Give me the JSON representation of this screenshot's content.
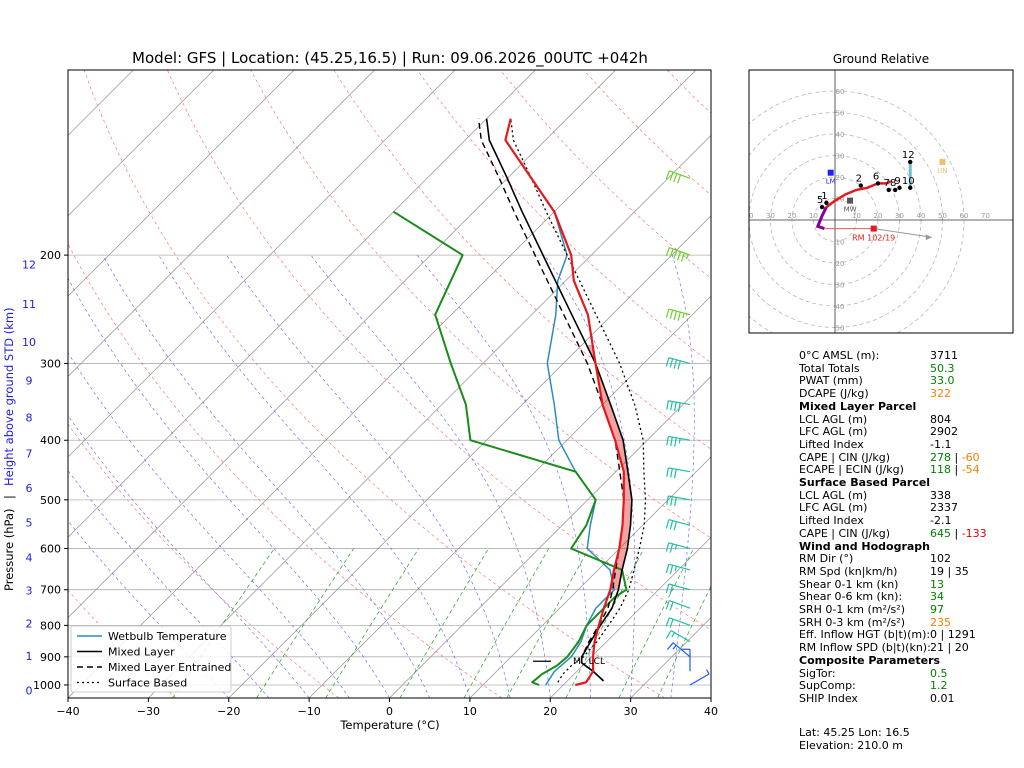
{
  "chart_data": [
    {
      "type": "skew-t",
      "title": "Model: GFS | Location: (45.25,16.5) | Run: 09.06.2026_00UTC +042h",
      "xlabel": "Temperature (°C)",
      "ylabel": "Pressure (hPa)",
      "ylabel2": "Height above ground STD (km)",
      "xlim": [
        -40,
        40
      ],
      "ylim": [
        1050,
        100
      ],
      "x_ticks": [
        "−40",
        "−30",
        "−20",
        "−10",
        "0",
        "10",
        "20",
        "30",
        "40"
      ],
      "p_ticks": [
        "200",
        "300",
        "400",
        "500",
        "600",
        "700",
        "800",
        "900",
        "1000"
      ],
      "p_tick_values": [
        200,
        300,
        400,
        500,
        600,
        700,
        800,
        900,
        1000
      ],
      "km_ticks": [
        "0",
        "1",
        "2",
        "3",
        "4",
        "5",
        "6",
        "7",
        "8",
        "9",
        "10",
        "11",
        "12"
      ],
      "km_tick_pressures": [
        1020,
        898,
        795,
        702,
        620,
        544,
        478,
        420,
        367,
        320,
        277,
        240,
        207
      ],
      "legend": [
        "Wetbulb Temperature",
        "Mixed Layer",
        "Mixed Layer Entrained",
        "Surface Based"
      ],
      "legend_position": "lower-left",
      "annotation": "ML LCL",
      "annotation_pressure": 915,
      "series": [
        {
          "name": "temperature",
          "color": "#e31a1c",
          "p": [
            1000,
            990,
            950,
            900,
            850,
            800,
            750,
            700,
            650,
            600,
            550,
            500,
            450,
            400,
            350,
            300,
            250,
            220,
            200,
            170,
            150,
            130,
            120
          ],
          "t": [
            21.5,
            22.5,
            22,
            20.2,
            18.5,
            17,
            15.5,
            14,
            12,
            10,
            7.5,
            4.5,
            1,
            -4,
            -10,
            -16,
            -23,
            -29,
            -32.5,
            -40,
            -47,
            -55,
            -57
          ]
        },
        {
          "name": "dewpoint",
          "color": "#1a8c1a",
          "p": [
            1000,
            990,
            960,
            930,
            900,
            850,
            800,
            760,
            720,
            700,
            650,
            600,
            550,
            500,
            450,
            400,
            350,
            300,
            250,
            200,
            170
          ],
          "t": [
            17,
            15.8,
            16,
            16.8,
            17,
            16.5,
            15.5,
            15.5,
            15.5,
            16,
            13,
            4,
            3,
            1,
            -5,
            -22,
            -27,
            -34,
            -42,
            -46,
            -60
          ]
        },
        {
          "name": "Wetbulb Temperature",
          "color": "#2b8cbe",
          "p": [
            1000,
            950,
            900,
            850,
            800,
            750,
            700,
            650,
            600,
            550,
            500,
            450,
            400,
            350,
            300,
            250,
            220,
            200,
            170,
            150,
            130,
            120
          ],
          "t": [
            17.8,
            17.2,
            17.5,
            16.8,
            15.5,
            14.5,
            14.5,
            11.5,
            6,
            3.5,
            1,
            -5,
            -11,
            -16,
            -22,
            -27,
            -31,
            -33,
            -40,
            -47,
            -55,
            -57
          ]
        },
        {
          "name": "Mixed Layer",
          "color": "#000000",
          "p": [
            985,
            950,
            920,
            900,
            850,
            800,
            750,
            700,
            650,
            600,
            550,
            500,
            450,
            400,
            350,
            300,
            250,
            200,
            170,
            150,
            130,
            120
          ],
          "t": [
            24.5,
            22,
            19.5,
            18.8,
            18,
            17.2,
            16.5,
            15,
            13,
            11,
            8.5,
            5.5,
            1.5,
            -3,
            -9,
            -16,
            -25,
            -36,
            -44,
            -50,
            -57,
            -60
          ]
        },
        {
          "name": "Mixed Layer Entrained",
          "color": "#000000",
          "p": [
            985,
            950,
            920,
            900,
            850,
            800,
            750,
            700,
            650,
            600,
            550,
            500,
            450,
            400,
            350,
            300,
            250,
            200,
            170,
            150,
            130,
            120
          ],
          "t": [
            24.5,
            22,
            19.5,
            18.8,
            17.8,
            17,
            16,
            14.3,
            12.2,
            10,
            7.5,
            4.5,
            0.5,
            -4,
            -10,
            -17,
            -26,
            -37,
            -45,
            -51,
            -58,
            -61
          ]
        },
        {
          "name": "Surface Based",
          "color": "#000000",
          "p": [
            990,
            960,
            930,
            900,
            850,
            800,
            750,
            700,
            650,
            600,
            550,
            500,
            450,
            400,
            350,
            300,
            250,
            200,
            170,
            150,
            130,
            120
          ],
          "t": [
            19,
            18.6,
            18.6,
            19,
            18.8,
            18.2,
            17.5,
            16.3,
            14.5,
            12.5,
            10.2,
            7.2,
            3.5,
            -0.5,
            -6,
            -13,
            -22,
            -33,
            -41,
            -47,
            -54,
            -57
          ]
        }
      ],
      "wind_barbs": {
        "p": [
          1000,
          950,
          900,
          850,
          800,
          750,
          700,
          650,
          600,
          550,
          500,
          450,
          400,
          350,
          300,
          250,
          200,
          150
        ],
        "speed_kt": [
          5,
          10,
          15,
          15,
          20,
          20,
          20,
          25,
          25,
          30,
          30,
          30,
          35,
          40,
          40,
          45,
          55,
          40
        ],
        "dir_deg": [
          120,
          180,
          230,
          240,
          250,
          250,
          255,
          255,
          255,
          255,
          260,
          260,
          260,
          260,
          255,
          255,
          250,
          250
        ]
      }
    },
    {
      "type": "hodograph",
      "title": "Ground Relative",
      "rings": [
        10,
        20,
        30,
        40,
        50,
        60
      ],
      "tick_labels": [
        "40",
        "30",
        "20",
        "10",
        "10",
        "20",
        "30",
        "40",
        "50",
        "60",
        "70"
      ],
      "ring_labels": [
        "10",
        "20",
        "30",
        "40",
        "50",
        "60"
      ],
      "height_labels": [
        "1",
        "2",
        "5",
        "6",
        "7",
        "8",
        "9",
        "10",
        "12"
      ],
      "marker_labels": {
        "lm": "LM",
        "mw": "MW",
        "rm": "RM 102/19",
        "un": "UN"
      },
      "hodo": {
        "u": [
          -5,
          -8,
          -6,
          -4,
          0,
          5,
          10,
          15,
          20,
          24,
          26
        ],
        "v": [
          -4,
          -3,
          2,
          6,
          9,
          12,
          14,
          15,
          17,
          17,
          18
        ]
      },
      "points": [
        {
          "label": "1",
          "u": -4,
          "v": 8
        },
        {
          "label": "2",
          "u": 12,
          "v": 16
        },
        {
          "label": "5",
          "u": -6,
          "v": 6
        },
        {
          "label": "6",
          "u": 20,
          "v": 17
        },
        {
          "label": "7",
          "u": 25,
          "v": 14
        },
        {
          "label": "8",
          "u": 28,
          "v": 14
        },
        {
          "label": "9",
          "u": 30,
          "v": 15
        },
        {
          "label": "10",
          "u": 35,
          "v": 15
        },
        {
          "label": "12",
          "u": 35,
          "v": 27
        }
      ],
      "lm": [
        -2,
        22
      ],
      "mw": [
        7,
        9
      ],
      "rm": [
        18,
        -4
      ],
      "un": [
        50,
        27
      ]
    }
  ],
  "stats": {
    "general": [
      {
        "k": "0°C AMSL (m):",
        "v": "3711",
        "c": ""
      },
      {
        "k": "Total Totals",
        "v": "50.3",
        "c": "green"
      },
      {
        "k": "PWAT (mm)",
        "v": "33.0",
        "c": "green"
      },
      {
        "k": "DCAPE (J/kg)",
        "v": "322",
        "c": "orange"
      }
    ],
    "ml_header": "Mixed Layer Parcel",
    "ml": [
      {
        "k": "LCL AGL (m)",
        "v": "804",
        "c": ""
      },
      {
        "k": "LFC AGL (m)",
        "v": "2902",
        "c": ""
      },
      {
        "k": "Lifted Index",
        "v": "-1.1",
        "c": ""
      }
    ],
    "ml_cape_k": "CAPE | CIN (J/kg)",
    "ml_cape_a": "278",
    "ml_cape_b": "-60",
    "ml_ecape_k": "ECAPE | ECIN (J/kg)",
    "ml_ecape_a": "118",
    "ml_ecape_b": "-54",
    "sb_header": "Surface Based Parcel",
    "sb": [
      {
        "k": "LCL AGL (m)",
        "v": "338",
        "c": ""
      },
      {
        "k": "LFC AGL (m)",
        "v": "2337",
        "c": ""
      },
      {
        "k": "Lifted Index",
        "v": "-2.1",
        "c": ""
      }
    ],
    "sb_cape_k": "CAPE | CIN (J/kg)",
    "sb_cape_a": "645",
    "sb_cape_b": "-133",
    "wind_header": "Wind and Hodograph",
    "wind": [
      {
        "k": "RM Dir (°)",
        "v": "102",
        "c": ""
      },
      {
        "k": "RM Spd (kn|km/h)",
        "v": "19 | 35",
        "c": ""
      },
      {
        "k": "Shear 0-1 km (kn)",
        "v": "13",
        "c": "green"
      },
      {
        "k": "Shear 0-6 km (kn):",
        "v": "34",
        "c": "green"
      },
      {
        "k": "SRH 0-1 km (m²/s²)",
        "v": "97",
        "c": "green"
      },
      {
        "k": "SRH 0-3 km (m²/s²)",
        "v": "235",
        "c": "orange"
      },
      {
        "k": "Eff. Inflow HGT (b|t)(m):",
        "v": "0 | 1291",
        "c": ""
      },
      {
        "k": "RM Inflow SPD (b|t)(kn):",
        "v": "21 | 20",
        "c": ""
      }
    ],
    "comp_header": "Composite Parameters",
    "comp": [
      {
        "k": "SigTor:",
        "v": "0.5",
        "c": "green"
      },
      {
        "k": "SupComp:",
        "v": "1.2",
        "c": "green"
      },
      {
        "k": "SHIP Index",
        "v": "0.01",
        "c": ""
      }
    ],
    "footer_latlon": "Lat: 45.25  Lon: 16.5",
    "footer_elev": "Elevation: 210.0 m"
  }
}
